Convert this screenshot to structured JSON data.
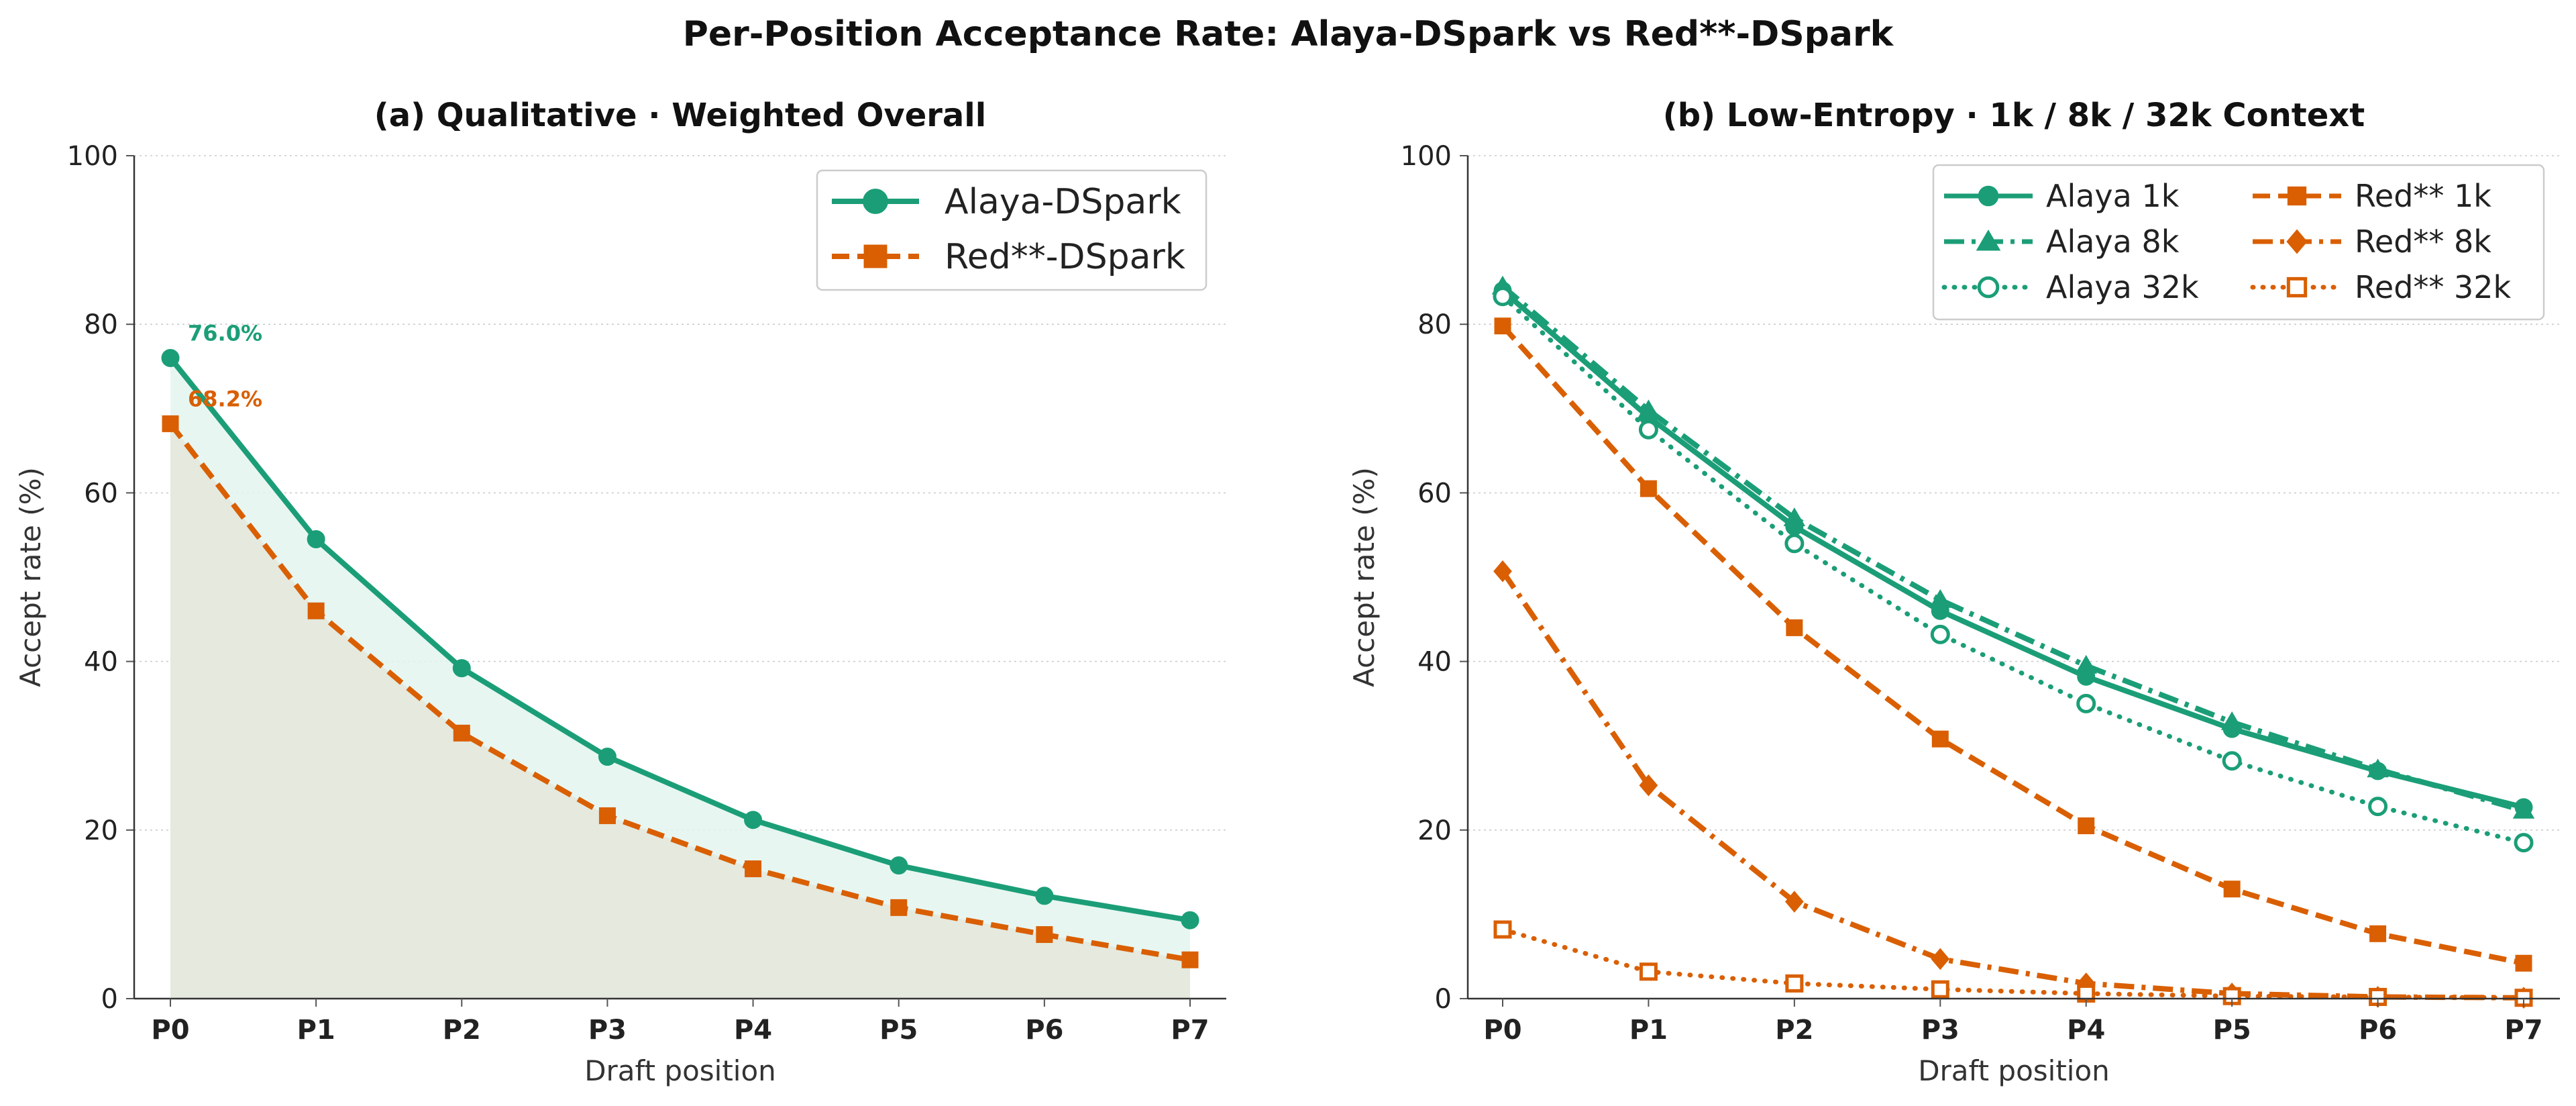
{
  "suptitle": "Per-Position Acceptance Rate: Alaya-DSpark vs Red**-DSpark",
  "colors": {
    "alaya": "#1b9e77",
    "red": "#d95f02",
    "alaya_fill": "#e3f4ee",
    "red_fill": "#e4e6da"
  },
  "chart_data": [
    {
      "type": "line",
      "title": "(a) Qualitative  ·  Weighted Overall",
      "xlabel": "Draft position",
      "ylabel": "Accept rate (%)",
      "categories": [
        "P0",
        "P1",
        "P2",
        "P3",
        "P4",
        "P5",
        "P6",
        "P7"
      ],
      "ylim": [
        0,
        100
      ],
      "yticks": [
        0,
        20,
        40,
        60,
        80,
        100
      ],
      "grid": "y-dotted",
      "legend_position": "top-right",
      "series": [
        {
          "name": "Alaya-DSpark",
          "color": "#1b9e77",
          "dash": "solid",
          "marker": "circle",
          "filled": true,
          "area_fill": true,
          "values": [
            76.0,
            54.5,
            39.2,
            28.7,
            21.2,
            15.8,
            12.2,
            9.3
          ]
        },
        {
          "name": "Red**-DSpark",
          "color": "#d95f02",
          "dash": "dashed",
          "marker": "square",
          "filled": true,
          "area_fill": true,
          "values": [
            68.2,
            46.0,
            31.5,
            21.7,
            15.4,
            10.8,
            7.6,
            4.6
          ]
        }
      ],
      "annotations": [
        {
          "text": "76.0%",
          "x": "P0",
          "y": 76.0,
          "color": "#1b9e77"
        },
        {
          "text": "68.2%",
          "x": "P0",
          "y": 68.2,
          "color": "#d95f02"
        }
      ]
    },
    {
      "type": "line",
      "title": "(b) Low-Entropy  ·  1k / 8k / 32k Context",
      "xlabel": "Draft position",
      "ylabel": "Accept rate (%)",
      "categories": [
        "P0",
        "P1",
        "P2",
        "P3",
        "P4",
        "P5",
        "P6",
        "P7"
      ],
      "ylim": [
        0,
        100
      ],
      "yticks": [
        0,
        20,
        40,
        60,
        80,
        100
      ],
      "grid": "y-dotted",
      "legend_position": "top-right",
      "legend_columns": 2,
      "series": [
        {
          "name": "Alaya  1k",
          "color": "#1b9e77",
          "dash": "solid",
          "marker": "circle",
          "filled": true,
          "values": [
            84.0,
            69.0,
            56.0,
            46.0,
            38.2,
            32.0,
            27.0,
            22.7
          ]
        },
        {
          "name": "Alaya  8k",
          "color": "#1b9e77",
          "dash": "dashdot",
          "marker": "triangle",
          "filled": true,
          "values": [
            84.5,
            69.8,
            57.0,
            47.3,
            39.5,
            32.8,
            27.2,
            22.3
          ]
        },
        {
          "name": "Alaya  32k",
          "color": "#1b9e77",
          "dash": "dotted",
          "marker": "circle",
          "filled": false,
          "values": [
            83.3,
            67.5,
            54.0,
            43.2,
            35.0,
            28.2,
            22.8,
            18.5
          ]
        },
        {
          "name": "Red**  1k",
          "color": "#d95f02",
          "dash": "dashed",
          "marker": "square",
          "filled": true,
          "values": [
            79.8,
            60.5,
            44.0,
            30.8,
            20.5,
            13.0,
            7.7,
            4.2
          ]
        },
        {
          "name": "Red**  8k",
          "color": "#d95f02",
          "dash": "dashdot",
          "marker": "diamond",
          "filled": true,
          "values": [
            50.7,
            25.3,
            11.5,
            4.7,
            1.8,
            0.6,
            0.2,
            0.1
          ]
        },
        {
          "name": "Red**  32k",
          "color": "#d95f02",
          "dash": "dotted",
          "marker": "square",
          "filled": false,
          "values": [
            8.2,
            3.2,
            1.8,
            1.1,
            0.6,
            0.3,
            0.2,
            0.1
          ]
        }
      ]
    }
  ]
}
